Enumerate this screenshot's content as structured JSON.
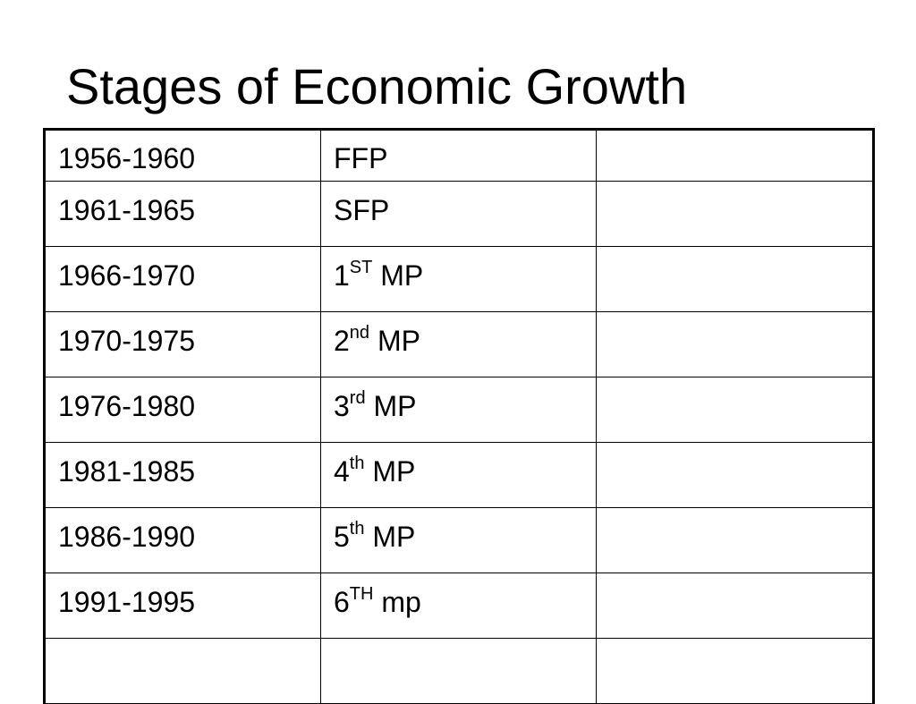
{
  "title": "Stages of Economic Growth",
  "table": {
    "rows": [
      {
        "period": "1956-1960",
        "plan": "FFP",
        "plan_sup": "",
        "plan_suffix": "",
        "note": ""
      },
      {
        "period": "1961-1965",
        "plan": "SFP",
        "plan_sup": "",
        "plan_suffix": "",
        "note": ""
      },
      {
        "period": "1966-1970",
        "plan": "1",
        "plan_sup": "ST",
        "plan_suffix": " MP",
        "note": ""
      },
      {
        "period": "1970-1975",
        "plan": "2",
        "plan_sup": "nd",
        "plan_suffix": " MP",
        "note": ""
      },
      {
        "period": "1976-1980",
        "plan": "3",
        "plan_sup": "rd",
        "plan_suffix": " MP",
        "note": ""
      },
      {
        "period": "1981-1985",
        "plan": "4",
        "plan_sup": "th",
        "plan_suffix": " MP",
        "note": ""
      },
      {
        "period": "1986-1990",
        "plan": "5",
        "plan_sup": "th",
        "plan_suffix": " MP",
        "note": ""
      },
      {
        "period": "1991-1995",
        "plan": "6",
        "plan_sup": "TH",
        "plan_suffix": " mp",
        "note": ""
      },
      {
        "period": "",
        "plan": "",
        "plan_sup": "",
        "plan_suffix": "",
        "note": ""
      }
    ]
  }
}
